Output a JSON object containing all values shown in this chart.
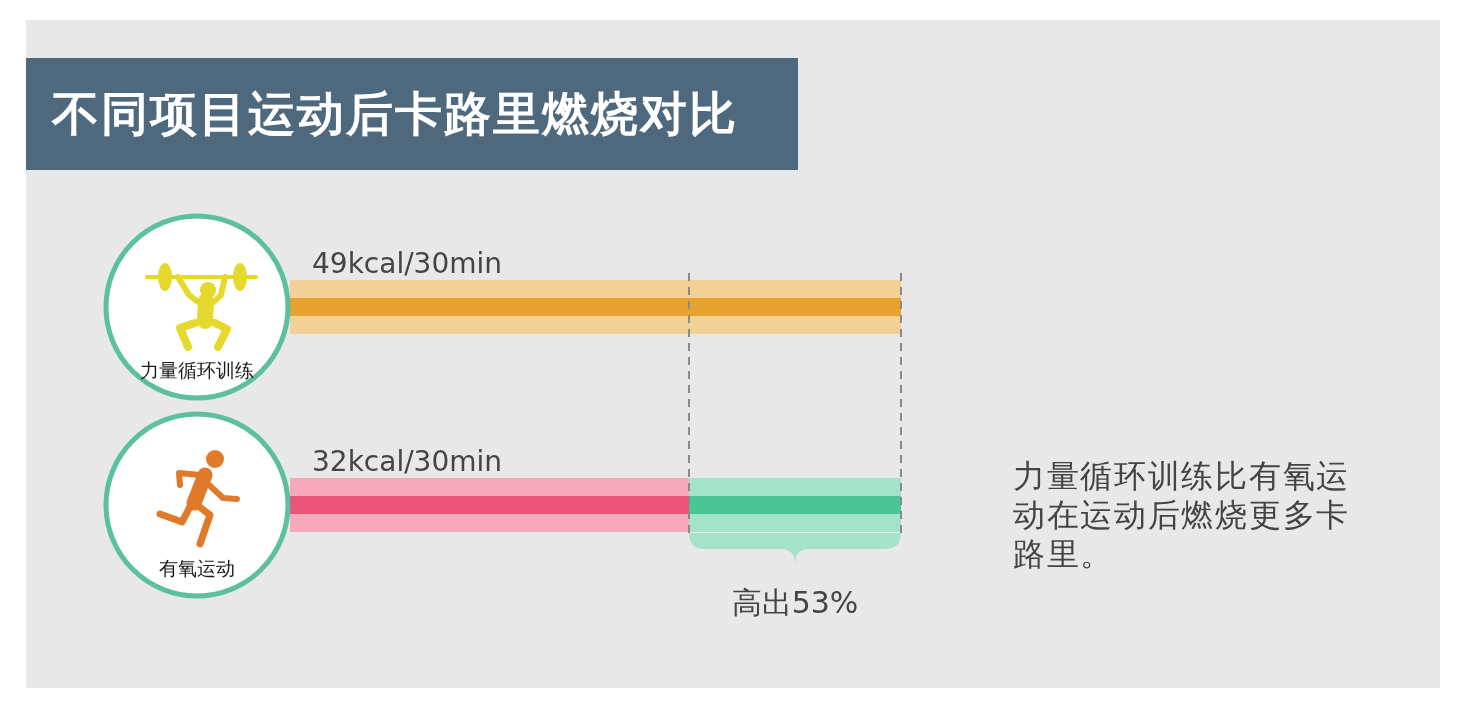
{
  "chart_data": {
    "type": "bar",
    "title": "不同项目运动后卡路里燃烧对比",
    "orientation": "horizontal",
    "stacked": true,
    "categories": [
      "力量循环训练",
      "有氧运动"
    ],
    "series": [
      {
        "colors": [
          "#f3d196",
          "#f5a9bb"
        ],
        "values": [
          49,
          32
        ],
        "value_labels": [
          "49kcal/30min",
          "32kcal/30min"
        ]
      },
      {
        "color": "#a5e2ca",
        "values": [
          null,
          17
        ]
      }
    ],
    "ref_lines": [
      {
        "axis": "x",
        "value": 32,
        "line_style": "dashed",
        "color": "#8a8a8a"
      },
      {
        "axis": "x",
        "value": 49,
        "line_style": "dashed",
        "color": "#8a8a8a"
      }
    ],
    "annotations": [
      "高出53%",
      "力量循环训练比有氧运动在运动后燃烧更多卡路里。"
    ],
    "tick_labels": "y"
  }
}
